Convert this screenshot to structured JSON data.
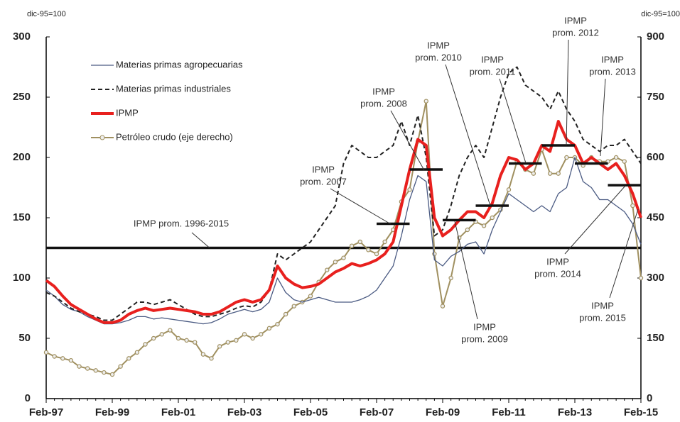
{
  "chart_data": {
    "type": "line",
    "y_label": "dic-95=100",
    "y2_label": "dic-95=100",
    "categories": [
      "Feb-97",
      null,
      null,
      null,
      null,
      null,
      null,
      null,
      "Feb-99",
      null,
      null,
      null,
      null,
      null,
      null,
      null,
      "Feb-01",
      null,
      null,
      null,
      null,
      null,
      null,
      null,
      "Feb-03",
      null,
      null,
      null,
      null,
      null,
      null,
      null,
      "Feb-05",
      null,
      null,
      null,
      null,
      null,
      null,
      null,
      "Feb-07",
      null,
      null,
      null,
      null,
      null,
      null,
      null,
      "Feb-09",
      null,
      null,
      null,
      null,
      null,
      null,
      null,
      "Feb-11",
      null,
      null,
      null,
      null,
      null,
      null,
      null,
      "Feb-13",
      null,
      null,
      null,
      null,
      null,
      null,
      null,
      "Feb-15"
    ],
    "ylim": [
      0,
      300
    ],
    "yticks": [
      0,
      50,
      100,
      150,
      200,
      250,
      300
    ],
    "y2lim": [
      0,
      900
    ],
    "y2ticks": [
      0,
      150,
      300,
      450,
      600,
      750,
      900
    ],
    "series": [
      {
        "name": "Materias primas agropecuarias",
        "color": "#4a5a82",
        "width": 1.3,
        "line_style": "solid",
        "markers": false,
        "values": [
          90,
          85,
          78,
          74,
          72,
          68,
          65,
          62,
          62,
          63,
          65,
          68,
          68,
          66,
          67,
          66,
          65,
          64,
          63,
          62,
          63,
          66,
          70,
          72,
          74,
          72,
          74,
          80,
          100,
          88,
          82,
          80,
          82,
          84,
          82,
          80,
          80,
          80,
          82,
          85,
          90,
          100,
          110,
          135,
          165,
          185,
          180,
          115,
          110,
          118,
          122,
          128,
          130,
          120,
          140,
          155,
          170,
          165,
          160,
          155,
          160,
          155,
          170,
          175,
          200,
          180,
          175,
          165,
          165,
          160,
          155,
          145,
          128
        ]
      },
      {
        "name": "Materias primas industriales",
        "color": "#222222",
        "width": 2,
        "line_style": "dashed",
        "markers": false,
        "values": [
          88,
          85,
          80,
          75,
          72,
          70,
          68,
          65,
          65,
          70,
          75,
          80,
          80,
          78,
          80,
          82,
          78,
          74,
          70,
          68,
          68,
          70,
          72,
          75,
          77,
          76,
          80,
          90,
          120,
          115,
          120,
          125,
          130,
          140,
          150,
          160,
          195,
          210,
          205,
          200,
          200,
          205,
          210,
          230,
          210,
          235,
          200,
          135,
          140,
          160,
          185,
          200,
          210,
          200,
          225,
          250,
          270,
          275,
          260,
          255,
          250,
          240,
          255,
          240,
          230,
          215,
          210,
          205,
          210,
          210,
          215,
          205,
          195
        ]
      },
      {
        "name": "IPMP",
        "color": "#e8201e",
        "width": 4,
        "line_style": "solid",
        "markers": false,
        "values": [
          98,
          93,
          85,
          78,
          74,
          70,
          66,
          63,
          63,
          65,
          70,
          73,
          75,
          73,
          74,
          75,
          74,
          73,
          72,
          70,
          70,
          72,
          76,
          80,
          82,
          80,
          82,
          90,
          110,
          100,
          95,
          92,
          93,
          95,
          100,
          105,
          108,
          112,
          110,
          112,
          115,
          120,
          130,
          160,
          190,
          215,
          210,
          150,
          135,
          140,
          148,
          155,
          155,
          150,
          162,
          185,
          200,
          198,
          190,
          195,
          210,
          205,
          230,
          215,
          210,
          195,
          200,
          195,
          190,
          195,
          185,
          170,
          150
        ]
      },
      {
        "name": "Petróleo crudo (eje derecho)",
        "color": "#a09060",
        "width": 2,
        "line_style": "solid",
        "markers": true,
        "axis": "y2",
        "values": [
          115,
          105,
          100,
          95,
          80,
          75,
          70,
          65,
          60,
          80,
          100,
          115,
          135,
          150,
          160,
          170,
          150,
          145,
          140,
          110,
          100,
          130,
          140,
          145,
          160,
          150,
          160,
          175,
          185,
          210,
          230,
          240,
          255,
          290,
          320,
          340,
          350,
          380,
          390,
          370,
          360,
          390,
          420,
          490,
          520,
          640,
          740,
          360,
          230,
          300,
          400,
          420,
          440,
          430,
          450,
          470,
          520,
          590,
          570,
          560,
          620,
          560,
          560,
          600,
          600,
          580,
          600,
          590,
          590,
          600,
          590,
          480,
          300
        ]
      }
    ],
    "long_term_average": {
      "label": "IPMP prom. 1996-2015",
      "value": 125
    },
    "annual_averages": [
      {
        "label": [
          "IPMP",
          "prom. 2007"
        ],
        "value": 145
      },
      {
        "label": [
          "IPMP",
          "prom. 2008"
        ],
        "value": 190
      },
      {
        "label": [
          "IPMP",
          "prom. 2009"
        ],
        "value": 148
      },
      {
        "label": [
          "IPMP",
          "prom. 2010"
        ],
        "value": 160
      },
      {
        "label": [
          "IPMP",
          "prom. 2011"
        ],
        "value": 195
      },
      {
        "label": [
          "IPMP",
          "prom. 2012"
        ],
        "value": 210
      },
      {
        "label": [
          "IPMP",
          "prom. 2013"
        ],
        "value": 195
      },
      {
        "label": [
          "IPMP",
          "prom. 2014"
        ],
        "value": 177
      },
      {
        "label": [
          "IPMP",
          "prom. 2015"
        ],
        "value": 150
      }
    ]
  }
}
